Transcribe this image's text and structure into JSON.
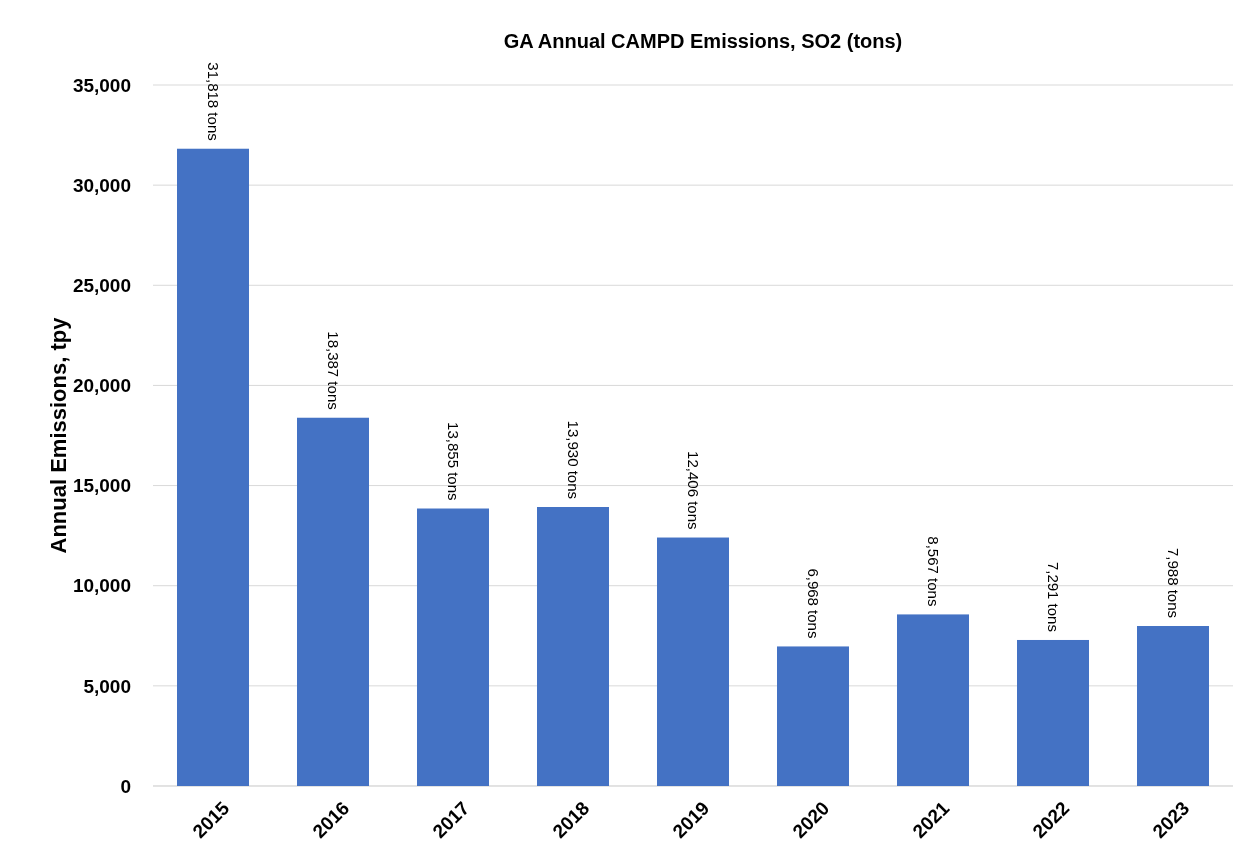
{
  "chart_data": {
    "type": "bar",
    "title": "GA Annual CAMPD Emissions, SO2 (tons)",
    "ylabel": "Annual Emissions, tpy",
    "categories": [
      "2015",
      "2016",
      "2017",
      "2018",
      "2019",
      "2020",
      "2021",
      "2022",
      "2023"
    ],
    "values": [
      31818,
      18387,
      13855,
      13930,
      12406,
      6968,
      8567,
      7291,
      7988
    ],
    "value_labels": [
      "31,818 tons",
      "18,387 tons",
      "13,855 tons",
      "13,930 tons",
      "12,406 tons",
      "6,968 tons",
      "8,567 tons",
      "7,291 tons",
      "7,988 tons"
    ],
    "color": "#4472c4",
    "ylim": [
      0,
      35000
    ],
    "yticks": [
      {
        "value": 0,
        "label": "0"
      },
      {
        "value": 5000,
        "label": "5,000"
      },
      {
        "value": 10000,
        "label": "10,000"
      },
      {
        "value": 15000,
        "label": "15,000"
      },
      {
        "value": 20000,
        "label": "20,000"
      },
      {
        "value": 25000,
        "label": "25,000"
      },
      {
        "value": 30000,
        "label": "30,000"
      },
      {
        "value": 35000,
        "label": "35,000"
      }
    ],
    "grid": "y"
  }
}
